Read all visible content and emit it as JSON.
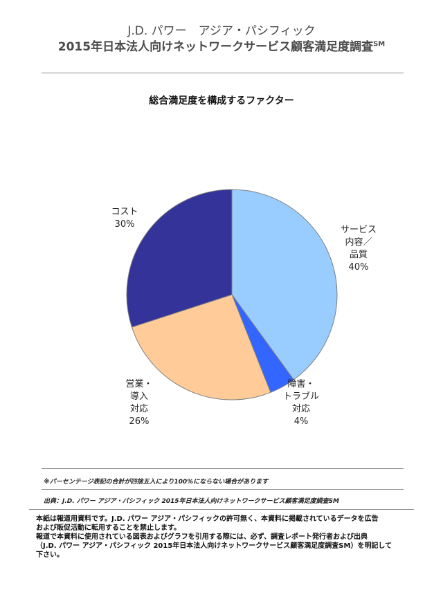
{
  "header": {
    "line1": "J.D. パワー　アジア・パシフィック",
    "line2": "2015年日本法人向けネットワークサービス顧客満足度調査",
    "line2_mark": "SM"
  },
  "chart_data": {
    "type": "pie",
    "title": "総合満足度を構成するファクター",
    "slices": [
      {
        "label": [
          "サービス",
          "内容／",
          "品質"
        ],
        "value_label": "40%",
        "value": 40,
        "color": "#99ccff"
      },
      {
        "label": [
          "障害・",
          "トラブル",
          "対応"
        ],
        "value_label": "4%",
        "value": 4,
        "color": "#3366ff"
      },
      {
        "label": [
          "営業・",
          "導入",
          "対応"
        ],
        "value_label": "26%",
        "value": 26,
        "color": "#ffcc99"
      },
      {
        "label": [
          "コスト"
        ],
        "value_label": "30%",
        "value": 30,
        "color": "#333399"
      }
    ],
    "start": "12 o'clock",
    "direction": "clockwise",
    "border_color": "#7f7f7f"
  },
  "notes": {
    "rounding": "※パーセンテージ表記の合計が四捨五入により100%にならない場合があります",
    "source": "出典：J.D. パワー アジア・パシフィック 2015年日本法人向けネットワークサービス顧客満足度調査SM"
  },
  "footer": {
    "line1": "本紙は報道用資料です。J.D. パワー アジア・パシフィックの許可無く、本資料に掲載されているデータを広告",
    "line2": "および販促活動に転用することを禁止します。",
    "line3": "報道で本資料に使用されている図表およびグラフを引用する際には、必ず、調査レポート発行者および出典",
    "line4": "（J.D. パワー アジア・パシフィック 2015年日本法人向けネットワークサービス顧客満足度調査SM）を明記して",
    "line5": "下さい。"
  }
}
